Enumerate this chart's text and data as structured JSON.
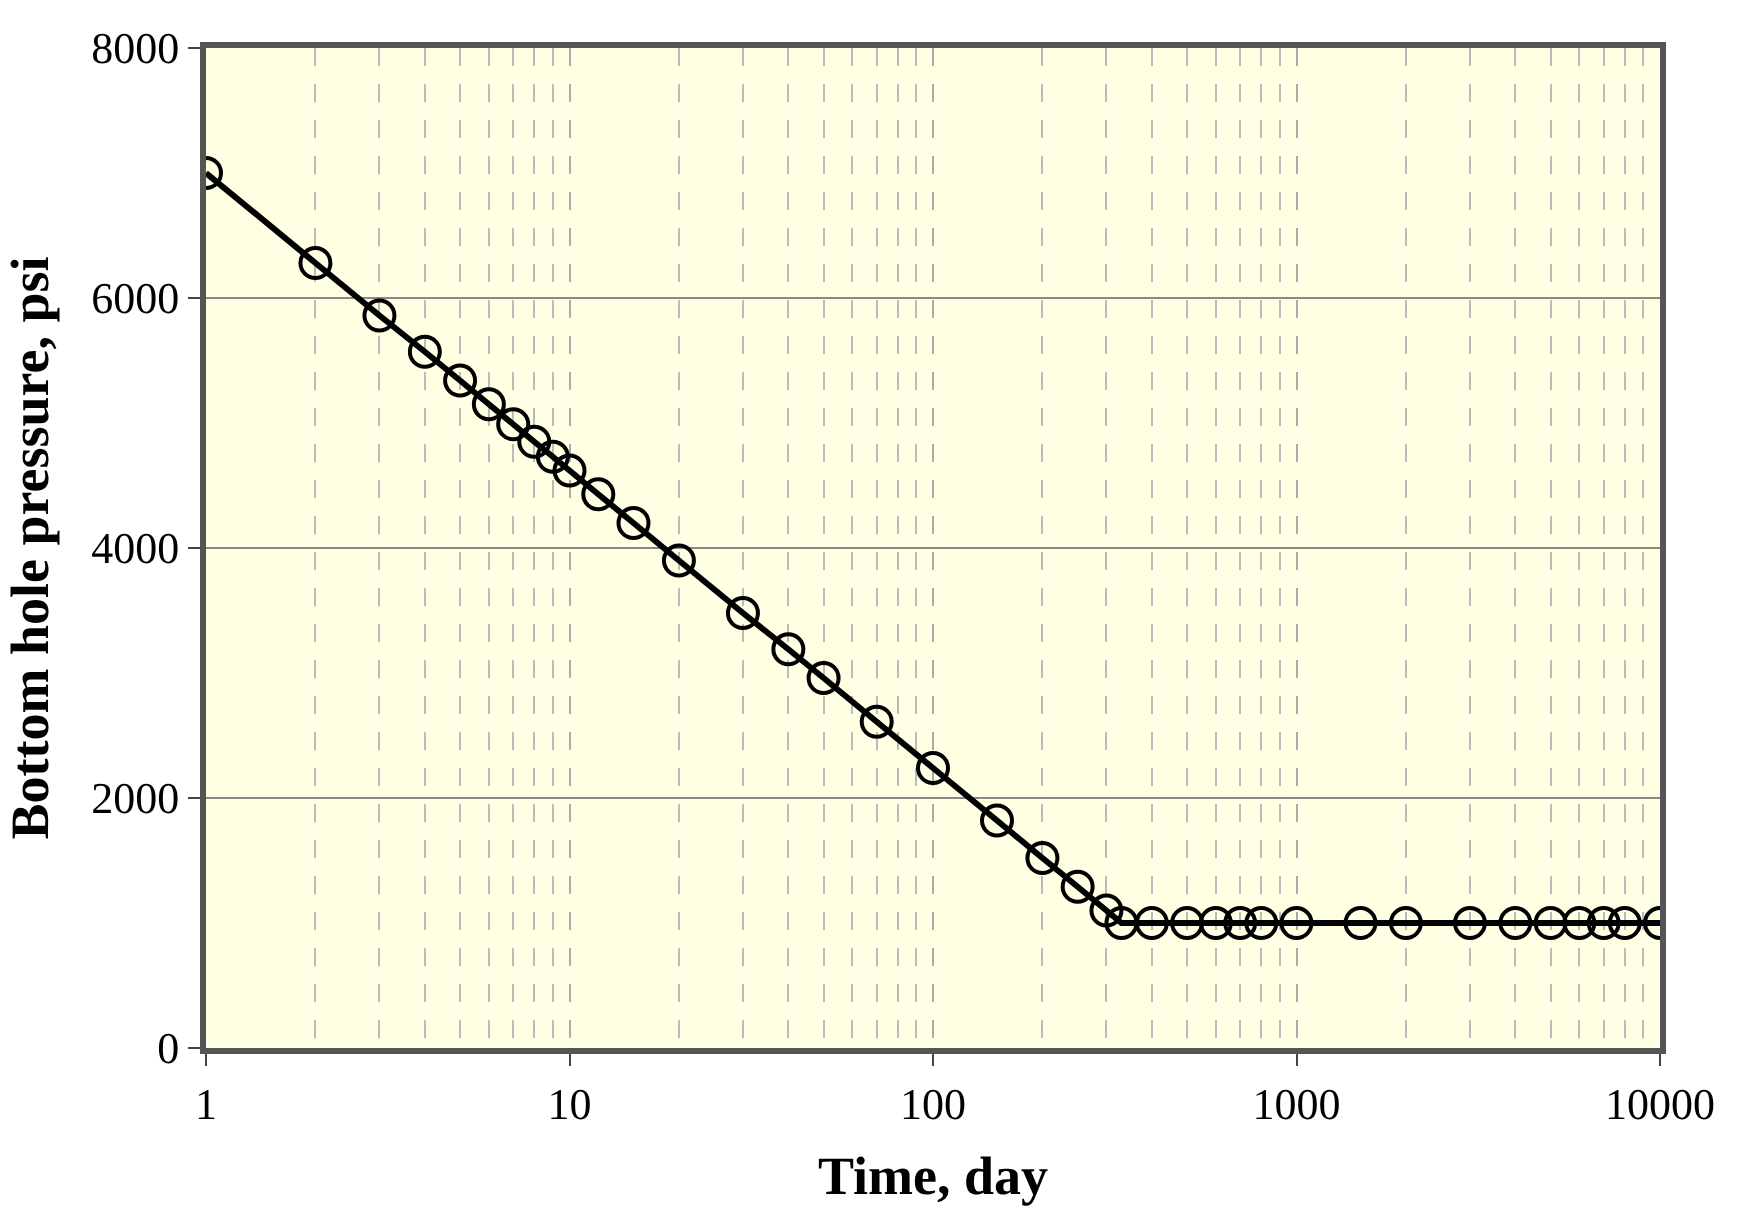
{
  "chart_data": {
    "type": "line",
    "xlabel": "Time, day",
    "ylabel": "Bottom hole pressure, psi",
    "log": "x",
    "x": [
      1,
      2,
      3,
      4,
      5,
      6,
      7,
      8,
      9,
      10,
      12,
      15,
      20,
      30,
      40,
      50,
      70,
      100,
      150,
      200,
      250,
      300,
      330,
      400,
      500,
      600,
      700,
      800,
      1000,
      1500,
      2000,
      3000,
      4000,
      5000,
      6000,
      7000,
      8000,
      10000
    ],
    "series": [
      {
        "color": "#000000",
        "values": [
          7000,
          6280,
          5860,
          5570,
          5340,
          5150,
          4990,
          4850,
          4730,
          4620,
          4430,
          4200,
          3900,
          3480,
          3190,
          2960,
          2610,
          2240,
          1820,
          1520,
          1290,
          1100,
          1000,
          1000,
          1000,
          1000,
          1000,
          1000,
          1000,
          1000,
          1000,
          1000,
          1000,
          1000,
          1000,
          1000,
          1000,
          1000
        ]
      }
    ],
    "xlim": [
      1,
      10000
    ],
    "xticks": [
      1,
      10,
      100,
      1000,
      10000
    ],
    "ylim": [
      0,
      8000
    ],
    "yticks": [
      0,
      2000,
      4000,
      6000,
      8000
    ],
    "grid": true,
    "marker": "circle",
    "line_style": "solid"
  }
}
